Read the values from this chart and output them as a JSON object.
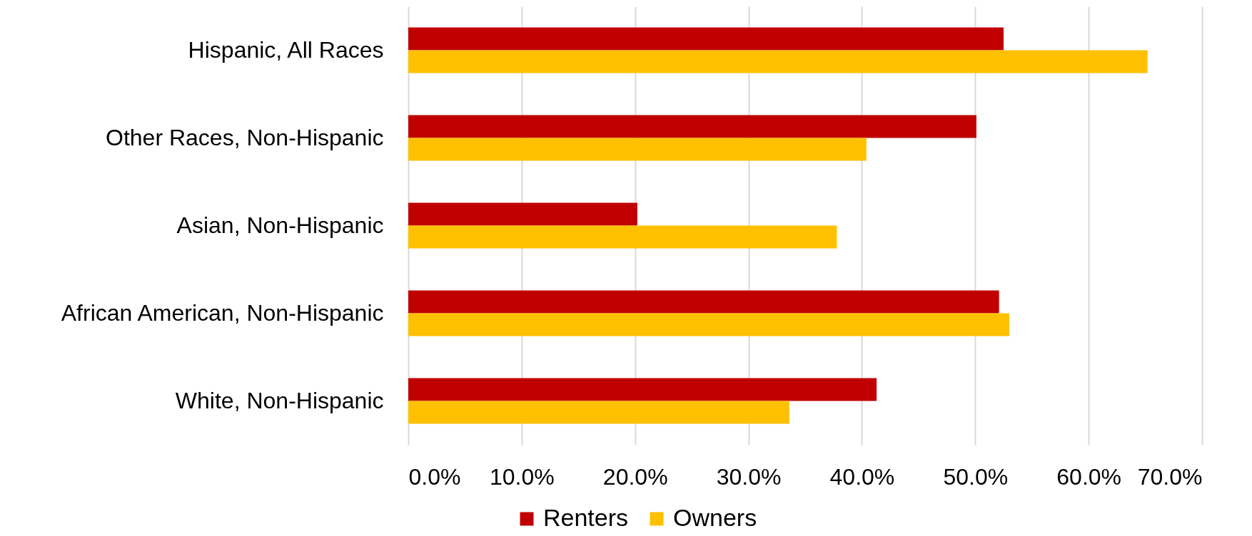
{
  "chart_data": {
    "type": "bar",
    "orientation": "horizontal",
    "categories": [
      "Hispanic, All Races",
      "Other Races, Non-Hispanic",
      "Asian, Non-Hispanic",
      "African American, Non-Hispanic",
      "White, Non-Hispanic"
    ],
    "series": [
      {
        "name": "Renters",
        "color": "#c00000",
        "values": [
          52.5,
          50.1,
          20.2,
          52.1,
          41.3
        ]
      },
      {
        "name": "Owners",
        "color": "#ffc000",
        "values": [
          65.2,
          40.4,
          37.8,
          53.0,
          33.6
        ]
      }
    ],
    "xlim": [
      0,
      70
    ],
    "xticks": [
      {
        "value": 0,
        "label": "0.0%"
      },
      {
        "value": 10,
        "label": "10.0%"
      },
      {
        "value": 20,
        "label": "20.0%"
      },
      {
        "value": 30,
        "label": "30.0%"
      },
      {
        "value": 40,
        "label": "40.0%"
      },
      {
        "value": 50,
        "label": "50.0%"
      },
      {
        "value": 60,
        "label": "60.0%"
      },
      {
        "value": 70,
        "label": "70.0%"
      }
    ],
    "grid": "x",
    "legend": "bottom"
  }
}
